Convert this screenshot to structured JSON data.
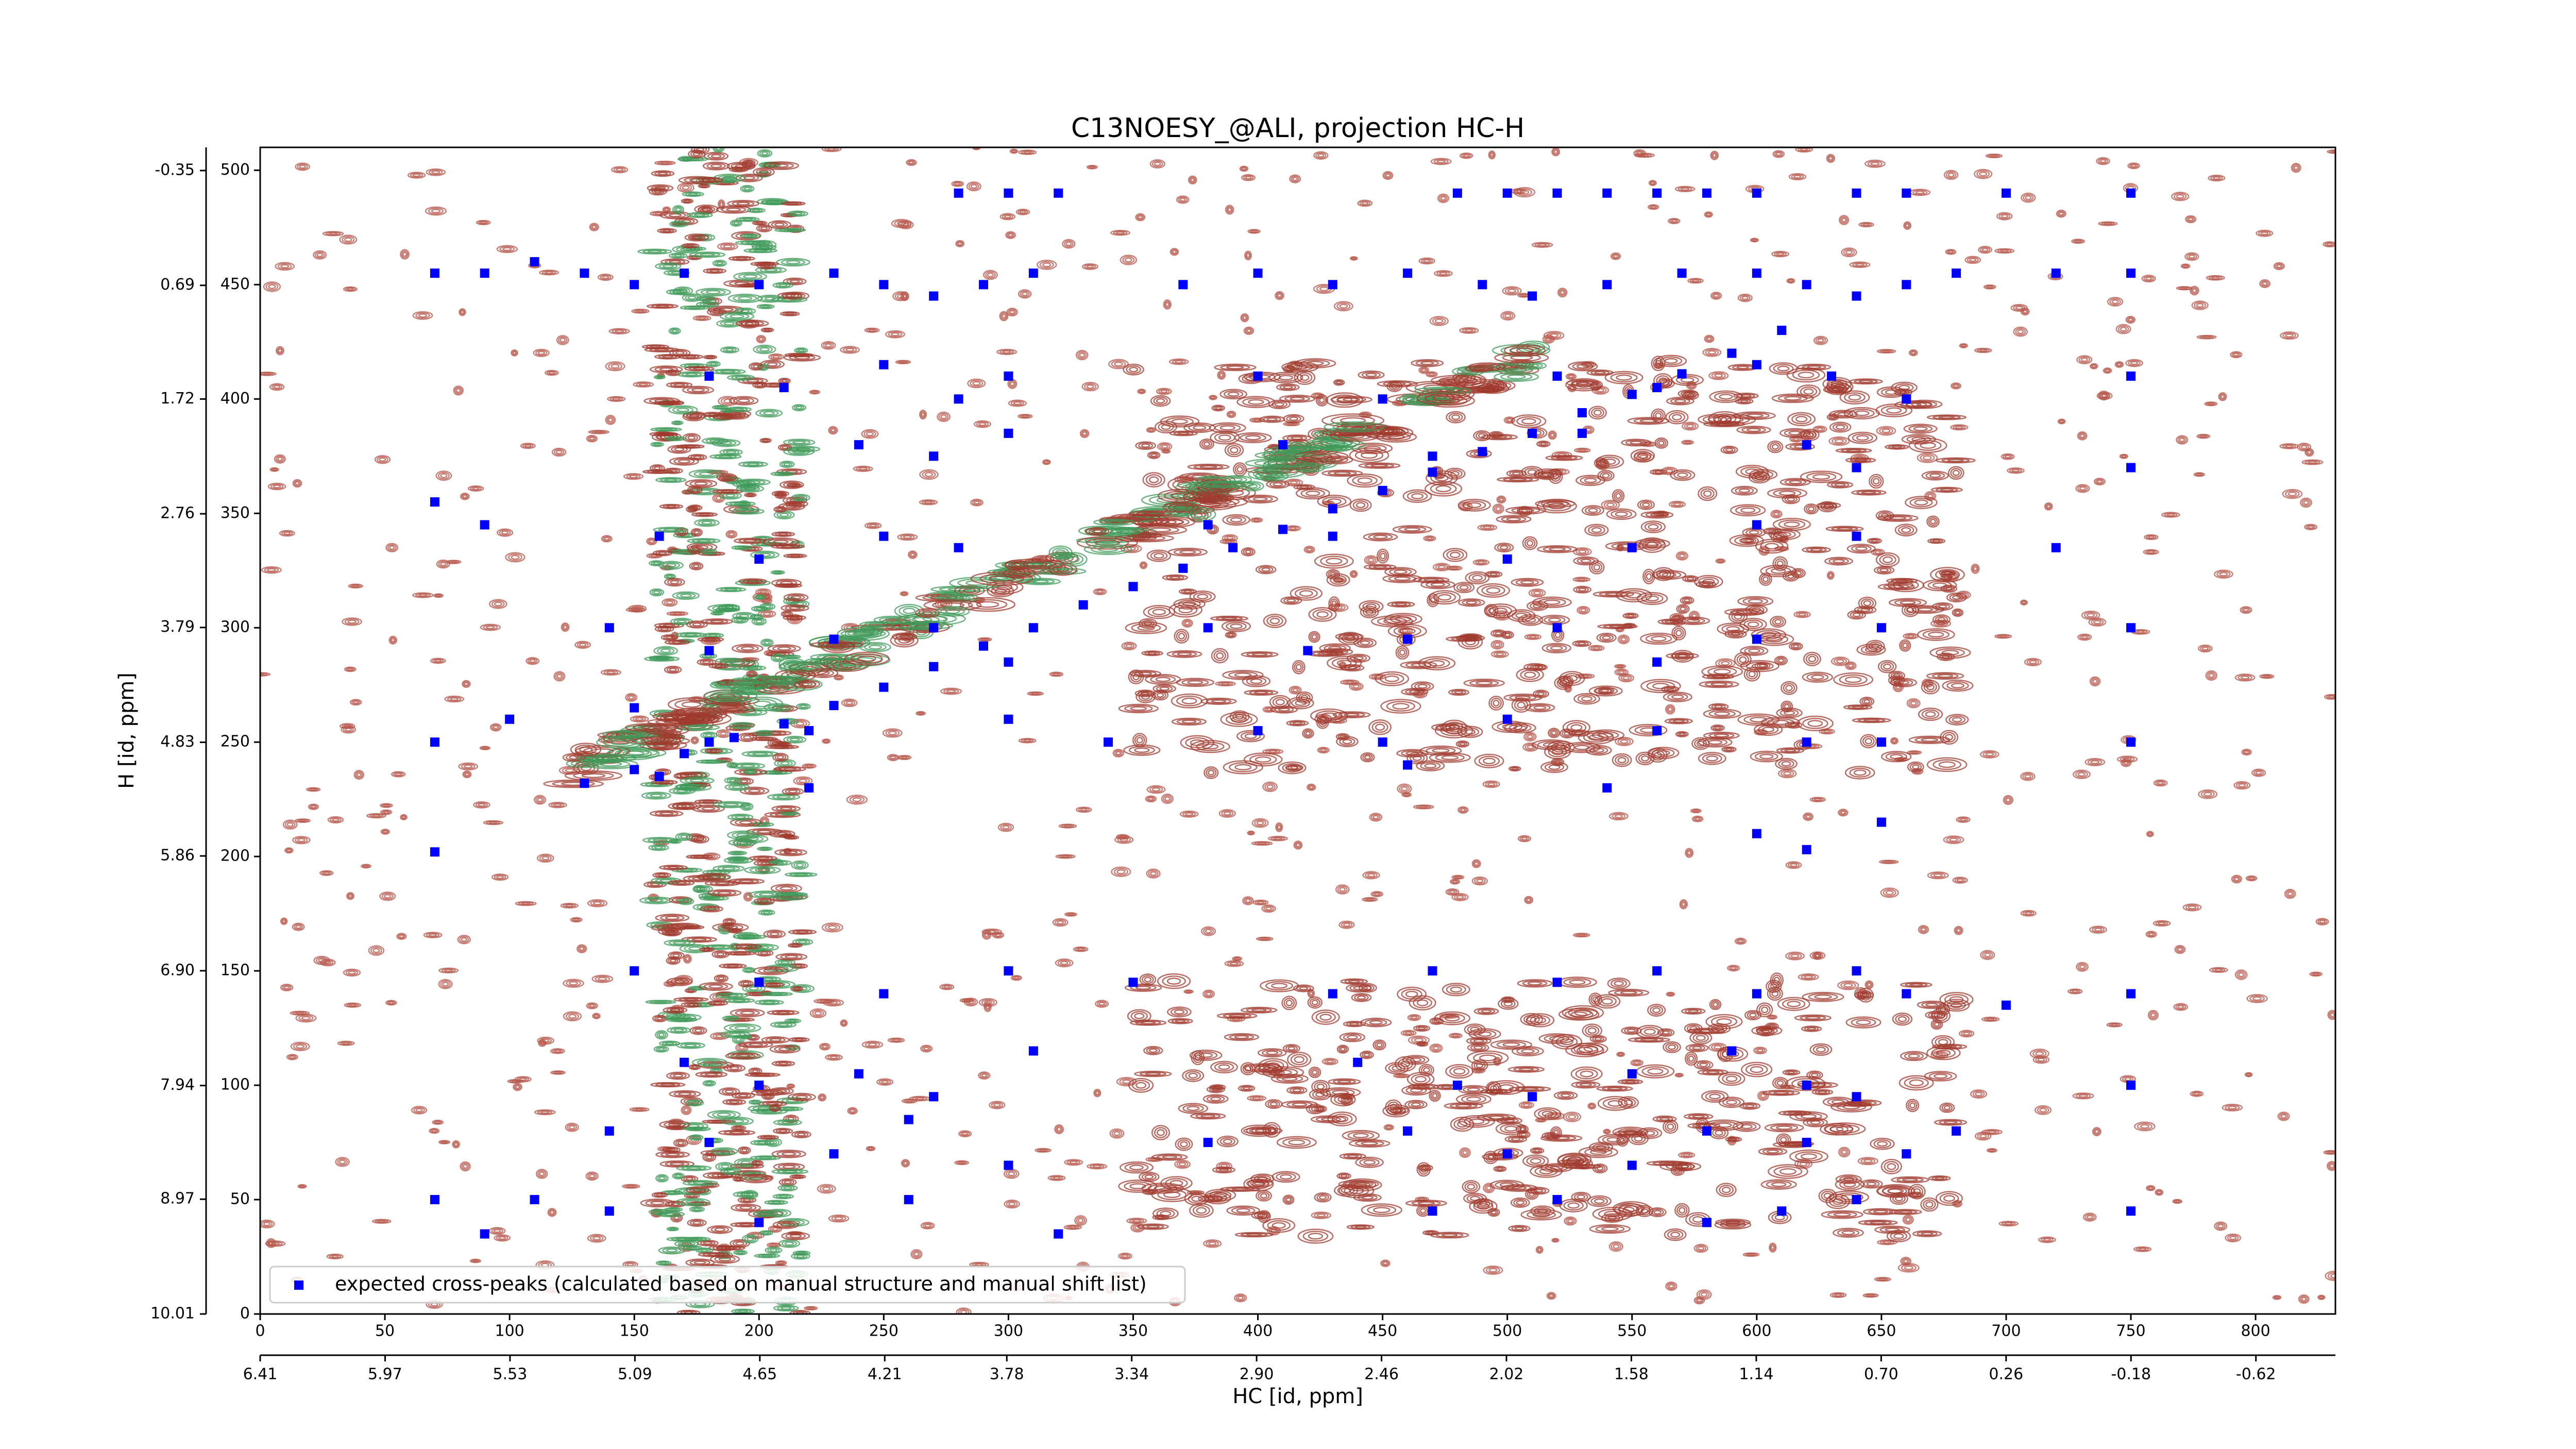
{
  "chart_data": {
    "type": "scatter",
    "title": "C13NOESY_@ALI, projection HC-H",
    "x_label": "HC [id, ppm]",
    "y_label": "H [id, ppm]",
    "xlim": [
      0,
      832
    ],
    "xticks": [
      0,
      50,
      100,
      150,
      200,
      250,
      300,
      350,
      400,
      450,
      500,
      550,
      600,
      650,
      700,
      750,
      800
    ],
    "ylim": [
      0,
      510
    ],
    "yticks": [
      0,
      50,
      100,
      150,
      200,
      250,
      300,
      350,
      400,
      450,
      500
    ],
    "x2lim": [
      6.41,
      -0.9
    ],
    "x2ticks": [
      6.41,
      5.97,
      5.53,
      5.09,
      4.65,
      4.21,
      3.78,
      3.34,
      {
        "value": 2.9,
        "label": "2.90"
      },
      2.46,
      2.02,
      1.58,
      1.14,
      {
        "value": 0.7,
        "label": "0.70"
      },
      0.26,
      -0.18,
      -0.62
    ],
    "y2lim": [
      10.01,
      -0.56
    ],
    "y2ticks": [
      10.01,
      8.97,
      7.94,
      {
        "value": 6.9,
        "label": "6.90"
      },
      5.86,
      4.83,
      3.79,
      2.76,
      1.72,
      0.69,
      -0.35
    ],
    "legend": "lower left",
    "series": [
      {
        "name": "expected cross-peaks (calculated based on manual structure and manual shift list)",
        "color": "#0000ff",
        "x": [
          130,
          150,
          170,
          190,
          210,
          230,
          250,
          270,
          290,
          310,
          330,
          350,
          370,
          390,
          410,
          430,
          450,
          470,
          490,
          510,
          530,
          550,
          570,
          590,
          610,
          280,
          300,
          320,
          480,
          500,
          520,
          540,
          560,
          580,
          600,
          640,
          660,
          700,
          750,
          70,
          90,
          110,
          130,
          150,
          170,
          200,
          230,
          250,
          270,
          290,
          310,
          370,
          400,
          430,
          460,
          490,
          510,
          540,
          570,
          600,
          620,
          640,
          660,
          680,
          720,
          750,
          180,
          210,
          250,
          280,
          300,
          400,
          450,
          520,
          560,
          600,
          630,
          660,
          750,
          240,
          270,
          300,
          410,
          470,
          530,
          620,
          640,
          750,
          70,
          90,
          160,
          200,
          250,
          280,
          380,
          430,
          500,
          550,
          600,
          640,
          720,
          140,
          180,
          230,
          270,
          300,
          380,
          420,
          460,
          520,
          560,
          600,
          650,
          750,
          70,
          100,
          150,
          180,
          220,
          300,
          340,
          400,
          450,
          500,
          560,
          620,
          650,
          750,
          70,
          160,
          220,
          460,
          540,
          600,
          620,
          650,
          150,
          200,
          250,
          300,
          350,
          430,
          470,
          520,
          560,
          600,
          640,
          660,
          700,
          750,
          170,
          200,
          240,
          270,
          310,
          440,
          480,
          510,
          550,
          590,
          620,
          640,
          750,
          140,
          180,
          230,
          260,
          300,
          380,
          460,
          500,
          550,
          580,
          620,
          660,
          680,
          70,
          90,
          110,
          140,
          200,
          260,
          320,
          470,
          520,
          580,
          610,
          640,
          750
        ],
        "y": [
          232,
          238,
          245,
          252,
          258,
          266,
          274,
          283,
          292,
          300,
          310,
          318,
          326,
          335,
          343,
          352,
          360,
          368,
          377,
          385,
          394,
          402,
          411,
          420,
          430,
          490,
          490,
          490,
          490,
          490,
          490,
          490,
          490,
          490,
          490,
          490,
          490,
          490,
          490,
          455,
          455,
          460,
          455,
          450,
          455,
          450,
          455,
          450,
          445,
          450,
          455,
          450,
          455,
          450,
          455,
          450,
          445,
          450,
          455,
          455,
          450,
          445,
          450,
          455,
          455,
          455,
          410,
          405,
          415,
          400,
          410,
          410,
          400,
          410,
          405,
          415,
          410,
          400,
          410,
          380,
          375,
          385,
          380,
          375,
          385,
          380,
          370,
          370,
          355,
          345,
          340,
          330,
          340,
          335,
          345,
          340,
          330,
          335,
          345,
          340,
          335,
          300,
          290,
          295,
          300,
          285,
          300,
          290,
          295,
          300,
          285,
          295,
          300,
          300,
          250,
          260,
          265,
          250,
          255,
          260,
          250,
          255,
          250,
          260,
          255,
          250,
          250,
          250,
          202,
          235,
          230,
          240,
          230,
          210,
          203,
          215,
          150,
          145,
          140,
          150,
          145,
          140,
          150,
          145,
          150,
          140,
          150,
          140,
          135,
          140,
          110,
          100,
          105,
          95,
          115,
          110,
          100,
          95,
          105,
          115,
          100,
          95,
          100,
          80,
          75,
          70,
          85,
          65,
          75,
          80,
          70,
          65,
          80,
          75,
          70,
          80,
          50,
          35,
          50,
          45,
          40,
          50,
          35,
          45,
          50,
          40,
          45,
          50,
          45
        ]
      }
    ]
  }
}
